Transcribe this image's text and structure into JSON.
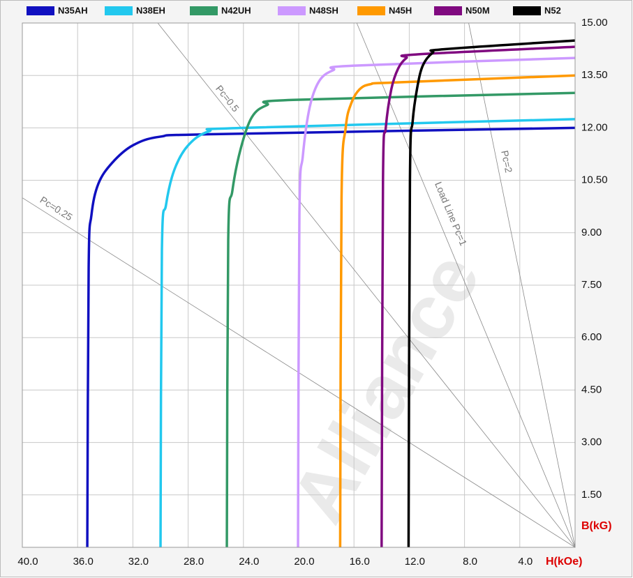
{
  "chart_data": {
    "type": "line",
    "watermark": "Alliance",
    "xlabel": "H(kOe)",
    "ylabel": "B(kG)",
    "xlim": [
      40,
      0
    ],
    "ylim": [
      0,
      15
    ],
    "xticks": [
      {
        "value": 40,
        "label": "40.0"
      },
      {
        "value": 36,
        "label": "36.0"
      },
      {
        "value": 32,
        "label": "32.0"
      },
      {
        "value": 28,
        "label": "28.0"
      },
      {
        "value": 24,
        "label": "24.0"
      },
      {
        "value": 20,
        "label": "20.0"
      },
      {
        "value": 16,
        "label": "16.0"
      },
      {
        "value": 12,
        "label": "12.0"
      },
      {
        "value": 8,
        "label": "8.0"
      },
      {
        "value": 4,
        "label": "4.0"
      }
    ],
    "yticks": [
      {
        "value": 1.5,
        "label": "1.50"
      },
      {
        "value": 3,
        "label": "3.00"
      },
      {
        "value": 4.5,
        "label": "4.50"
      },
      {
        "value": 6,
        "label": "6.00"
      },
      {
        "value": 7.5,
        "label": "7.50"
      },
      {
        "value": 9,
        "label": "9.00"
      },
      {
        "value": 10.5,
        "label": "10.50"
      },
      {
        "value": 12,
        "label": "12.00"
      },
      {
        "value": 13.5,
        "label": "13.50"
      },
      {
        "value": 15,
        "label": "15.00"
      }
    ],
    "grid": true,
    "series": [
      {
        "name": "N35AH",
        "color": "#1010c0",
        "x": [
          35.3,
          35.2,
          35.0,
          34.5,
          33.5,
          32,
          30,
          26,
          0
        ],
        "values": [
          0,
          8,
          9.5,
          10.4,
          11.0,
          11.5,
          11.75,
          11.82,
          12.0
        ]
      },
      {
        "name": "N38EH",
        "color": "#22c8ee",
        "x": [
          30.0,
          29.9,
          29.6,
          29.0,
          28.0,
          26.5,
          24,
          0
        ],
        "values": [
          0,
          8.5,
          9.8,
          10.8,
          11.5,
          11.9,
          12.0,
          12.25
        ]
      },
      {
        "name": "N42UH",
        "color": "#339966",
        "x": [
          25.2,
          25.1,
          24.8,
          24.2,
          23.4,
          22.3,
          20.4,
          0
        ],
        "values": [
          0,
          8.8,
          10.2,
          11.4,
          12.3,
          12.65,
          12.8,
          13.0
        ]
      },
      {
        "name": "N48SH",
        "color": "#cc99ff",
        "x": [
          20.05,
          19.95,
          19.7,
          19.2,
          18.5,
          17.5,
          16,
          0
        ],
        "values": [
          0,
          9.5,
          11.2,
          12.6,
          13.35,
          13.65,
          13.78,
          14.0
        ]
      },
      {
        "name": "N45H",
        "color": "#ff9900",
        "x": [
          17.0,
          16.9,
          16.6,
          16.2,
          15.6,
          14.8,
          13,
          0
        ],
        "values": [
          0,
          10,
          12.0,
          12.7,
          13.1,
          13.25,
          13.3,
          13.5
        ]
      },
      {
        "name": "N50M",
        "color": "#800a80",
        "x": [
          14.0,
          13.9,
          13.7,
          13.3,
          12.8,
          12.2,
          11.5,
          0
        ],
        "values": [
          0,
          10.5,
          12.0,
          13.1,
          13.7,
          14.0,
          14.1,
          14.32
        ]
      },
      {
        "name": "N52",
        "color": "#000000",
        "x": [
          12.05,
          11.95,
          11.75,
          11.4,
          11.0,
          10.3,
          9.5,
          0
        ],
        "values": [
          0,
          10.5,
          12.2,
          13.2,
          13.8,
          14.15,
          14.25,
          14.5
        ]
      }
    ],
    "load_lines": [
      {
        "label": "Pc=0.25",
        "x": [
          0,
          40
        ],
        "values": [
          0,
          10
        ]
      },
      {
        "label": "Pc=0.5",
        "x": [
          0,
          30.2
        ],
        "values": [
          0,
          15
        ]
      },
      {
        "label": "Load Line Pc=1",
        "x": [
          0,
          15.8
        ],
        "values": [
          0,
          15
        ]
      },
      {
        "label": "Pc=2",
        "x": [
          0,
          7.7
        ],
        "values": [
          0,
          15
        ]
      }
    ]
  }
}
